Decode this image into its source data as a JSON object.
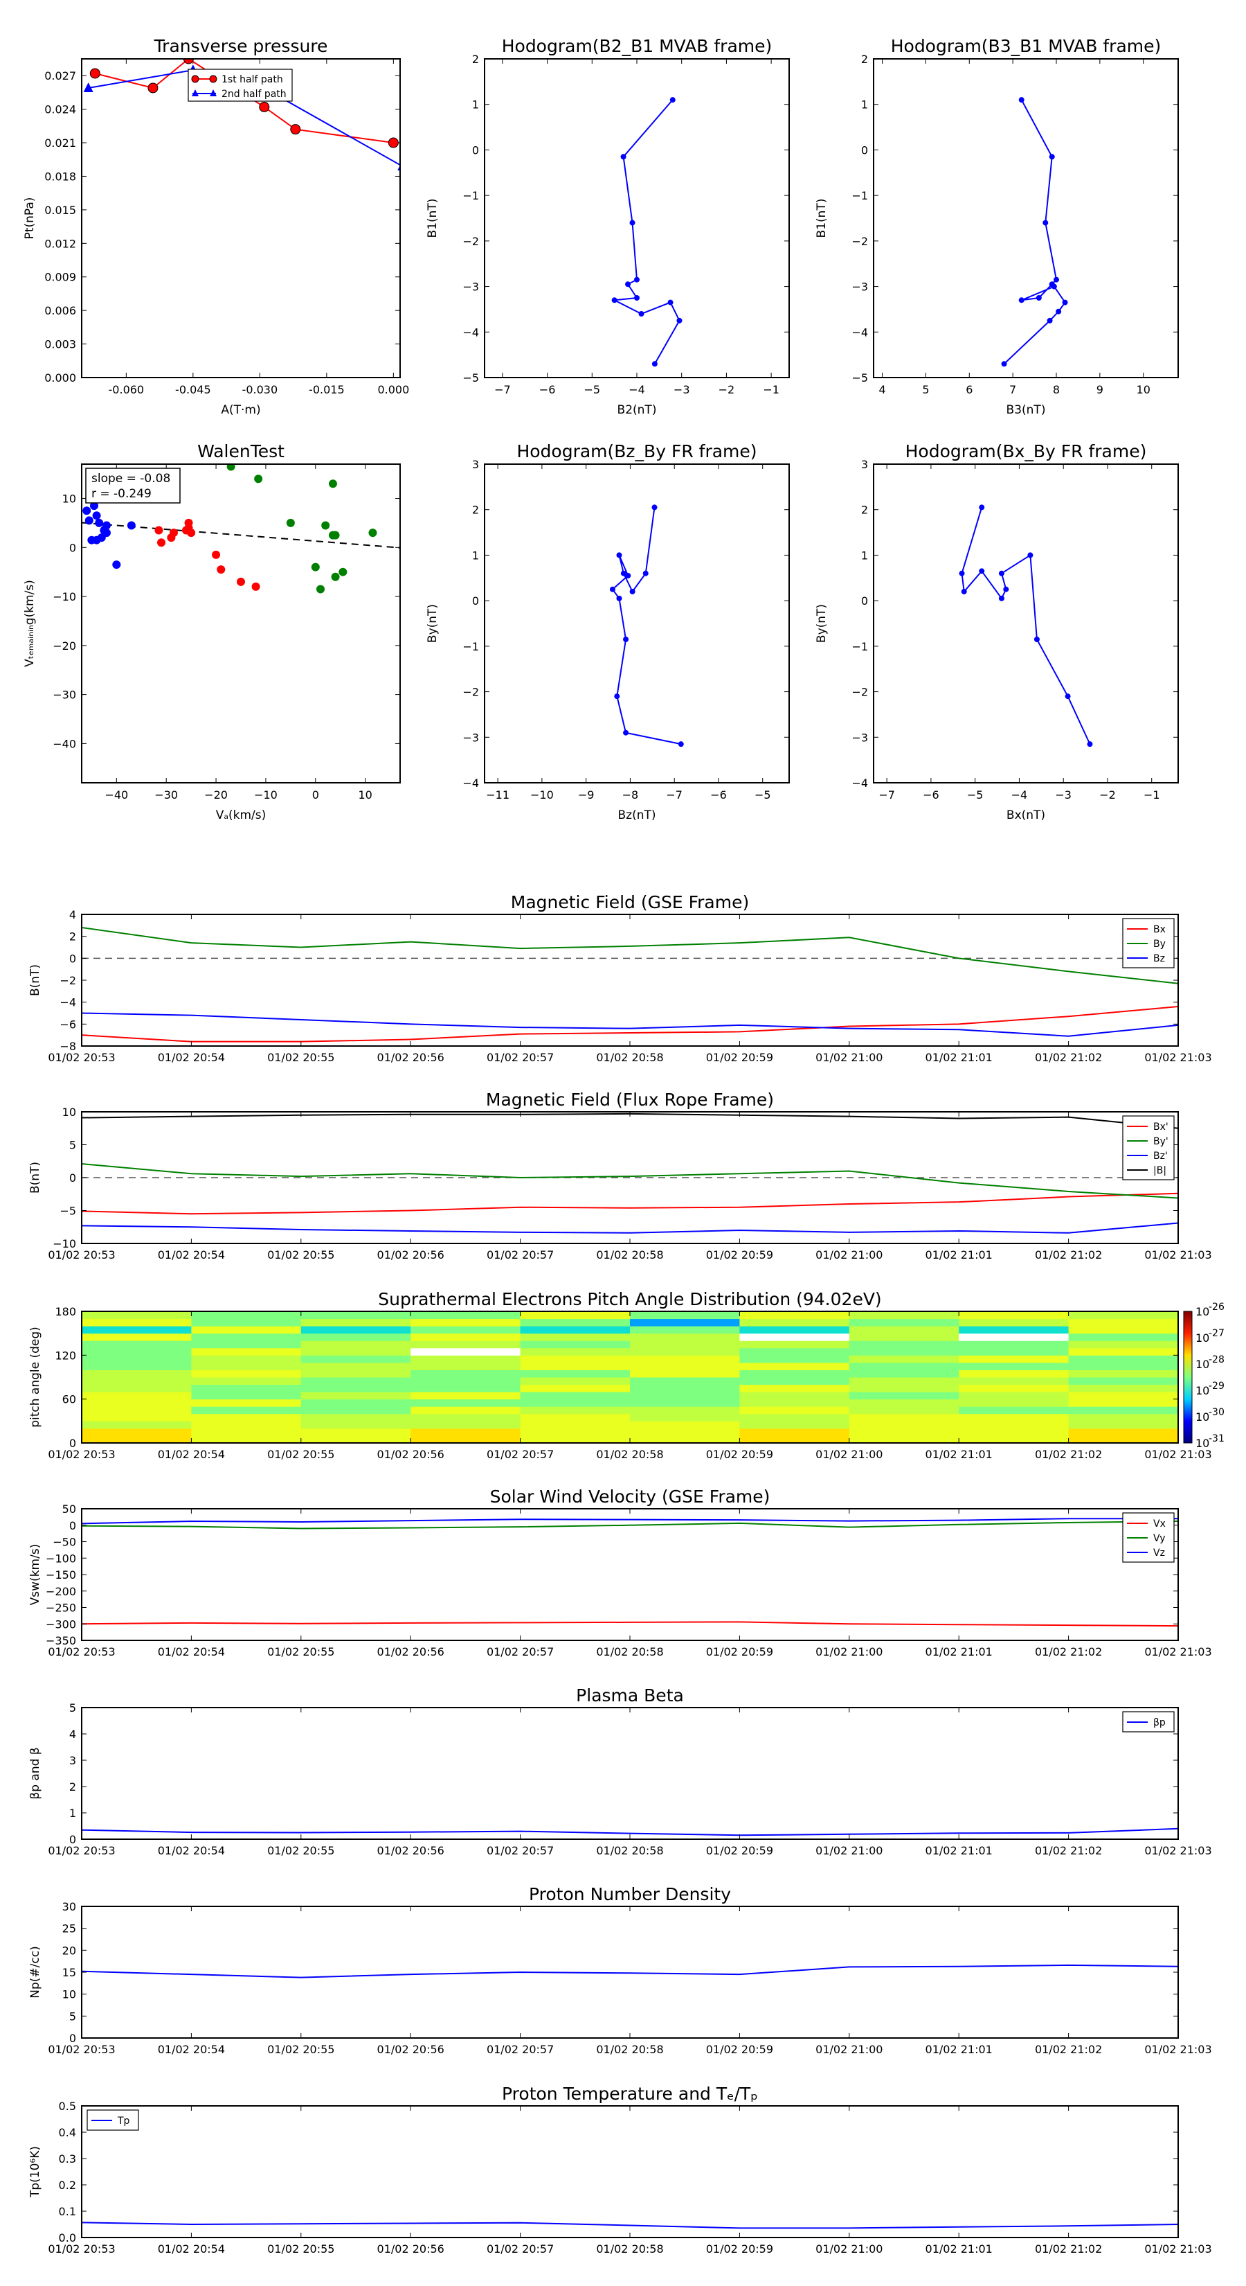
{
  "charts": [
    {
      "type": "line",
      "title": "Transverse pressure",
      "xlabel": "A(T·m)",
      "ylabel": "Pt(nPa)",
      "xlim": [
        -0.07,
        0.0015
      ],
      "ylim": [
        0,
        0.0285
      ],
      "xticks": [
        -0.06,
        -0.045,
        -0.03,
        -0.015,
        0.0
      ],
      "xtick_labels": [
        "-0.060",
        "-0.045",
        "-0.030",
        "-0.015",
        "0.000"
      ],
      "yticks": [
        0,
        0.003,
        0.006,
        0.009,
        0.012,
        0.015,
        0.018,
        0.021,
        0.024,
        0.027
      ],
      "ytick_labels": [
        "0.000",
        "0.003",
        "0.006",
        "0.009",
        "0.012",
        "0.015",
        "0.018",
        "0.021",
        "0.024",
        "0.027"
      ],
      "legend": "top-center",
      "series": [
        {
          "name": "1st half path",
          "color": "#ff0000",
          "marker": "circle",
          "x": [
            0.0,
            -0.022,
            -0.029,
            -0.046,
            -0.054,
            -0.067
          ],
          "y": [
            0.021,
            0.0222,
            0.0242,
            0.0285,
            0.0259,
            0.0272
          ]
        },
        {
          "name": "2nd half path",
          "color": "#0000ff",
          "marker": "triangle",
          "x": [
            -0.0685,
            -0.045,
            -0.034,
            0.002
          ],
          "y": [
            0.0259,
            0.0275,
            0.027,
            0.0189
          ]
        }
      ]
    },
    {
      "type": "line",
      "title": "Hodogram(B2_B1 MVAB frame)",
      "xlabel": "B2(nT)",
      "ylabel": "B1(nT)",
      "xlim": [
        -7.4,
        -0.6
      ],
      "ylim": [
        -5,
        2
      ],
      "xticks": [
        -7,
        -6,
        -5,
        -4,
        -3,
        -2,
        -1
      ],
      "xtick_labels": [
        "−7",
        "−6",
        "−5",
        "−4",
        "−3",
        "−2",
        "−1"
      ],
      "yticks": [
        -5,
        -4,
        -3,
        -2,
        -1,
        0,
        1,
        2
      ],
      "ytick_labels": [
        "−5",
        "−4",
        "−3",
        "−2",
        "−1",
        "0",
        "1",
        "2"
      ],
      "series": [
        {
          "name": "",
          "color": "#0000ff",
          "marker": "dot",
          "x": [
            -3.2,
            -4.3,
            -4.1,
            -4.0,
            -4.2,
            -4.0,
            -4.5,
            -3.9,
            -3.25,
            -3.05,
            -3.6
          ],
          "y": [
            1.1,
            -0.15,
            -1.6,
            -2.85,
            -2.95,
            -3.25,
            -3.3,
            -3.6,
            -3.35,
            -3.75,
            -4.7
          ]
        }
      ]
    },
    {
      "type": "line",
      "title": "Hodogram(B3_B1 MVAB frame)",
      "xlabel": "B3(nT)",
      "ylabel": "B1(nT)",
      "xlim": [
        3.8,
        10.8
      ],
      "ylim": [
        -5,
        2
      ],
      "xticks": [
        4,
        5,
        6,
        7,
        8,
        9,
        10
      ],
      "xtick_labels": [
        "4",
        "5",
        "6",
        "7",
        "8",
        "9",
        "10"
      ],
      "yticks": [
        -5,
        -4,
        -3,
        -2,
        -1,
        0,
        1,
        2
      ],
      "ytick_labels": [
        "−5",
        "−4",
        "−3",
        "−2",
        "−1",
        "0",
        "1",
        "2"
      ],
      "series": [
        {
          "name": "",
          "color": "#0000ff",
          "marker": "dot",
          "x": [
            7.2,
            7.9,
            7.75,
            8.0,
            7.9,
            7.6,
            7.2,
            7.95,
            8.2,
            8.05,
            7.85,
            6.8
          ],
          "y": [
            1.1,
            -0.15,
            -1.6,
            -2.85,
            -2.95,
            -3.25,
            -3.3,
            -3.0,
            -3.35,
            -3.55,
            -3.75,
            -4.7
          ]
        }
      ]
    },
    {
      "type": "scatter",
      "title": "WalenTest",
      "xlabel": "Vₐ(km/s)",
      "ylabel": "Vₜₑₘₐᵢₙᵢₙg(km/s)",
      "xlim": [
        -47,
        17
      ],
      "ylim": [
        -48,
        17
      ],
      "xticks": [
        -40,
        -30,
        -20,
        -10,
        0,
        10
      ],
      "xtick_labels": [
        "−40",
        "−30",
        "−20",
        "−10",
        "0",
        "10"
      ],
      "yticks": [
        -40,
        -30,
        -20,
        -10,
        0,
        10
      ],
      "ytick_labels": [
        "−40",
        "−30",
        "−20",
        "−10",
        "0",
        "10"
      ],
      "annotation": {
        "line1": "slope = -0.08",
        "line2": "r = -0.249"
      },
      "fit": {
        "slope": -0.08,
        "intercept": 1.3,
        "color": "#000000"
      },
      "series": [
        {
          "name": "",
          "color": "#0000ff",
          "x": [
            -46,
            -45.5,
            -45,
            -44.5,
            -44,
            -44,
            -43.5,
            -43,
            -42.5,
            -42,
            -42,
            -40,
            -37
          ],
          "y": [
            7.5,
            5.5,
            1.5,
            8.5,
            6.5,
            1.5,
            5.0,
            2.0,
            3.5,
            4.5,
            3.0,
            -3.5,
            4.5
          ]
        },
        {
          "name": "",
          "color": "#ff0000",
          "x": [
            -31.5,
            -31,
            -29,
            -28.5,
            -26,
            -25.5,
            -25.5,
            -25,
            -20,
            -19,
            -15,
            -12
          ],
          "y": [
            3.5,
            1.0,
            2.0,
            3.0,
            3.5,
            5.0,
            4.0,
            3.0,
            -1.5,
            -4.5,
            -7.0,
            -8.0
          ]
        },
        {
          "name": "",
          "color": "#008000",
          "x": [
            -17,
            -11.5,
            -5,
            0,
            1,
            2,
            3.5,
            3.5,
            4,
            4,
            5.5,
            11.5
          ],
          "y": [
            16.5,
            14,
            5,
            -4,
            -8.5,
            4.5,
            13,
            2.5,
            2.5,
            -6,
            -5,
            3
          ]
        }
      ]
    },
    {
      "type": "line",
      "title": "Hodogram(Bz_By FR frame)",
      "xlabel": "Bz(nT)",
      "ylabel": "By(nT)",
      "xlim": [
        -11.3,
        -4.4
      ],
      "ylim": [
        -4,
        3
      ],
      "xticks": [
        -11,
        -10,
        -9,
        -8,
        -7,
        -6,
        -5
      ],
      "xtick_labels": [
        "−11",
        "−10",
        "−9",
        "−8",
        "−7",
        "−6",
        "−5"
      ],
      "yticks": [
        -4,
        -3,
        -2,
        -1,
        0,
        1,
        2,
        3
      ],
      "ytick_labels": [
        "−4",
        "−3",
        "−2",
        "−1",
        "0",
        "1",
        "2",
        "3"
      ],
      "series": [
        {
          "name": "",
          "color": "#0000ff",
          "marker": "dot",
          "x": [
            -7.45,
            -7.65,
            -7.95,
            -8.15,
            -8.25,
            -8.05,
            -8.4,
            -8.25,
            -8.1,
            -8.3,
            -8.1,
            -6.85
          ],
          "y": [
            2.05,
            0.6,
            0.2,
            0.6,
            1.0,
            0.55,
            0.25,
            0.05,
            -0.85,
            -2.1,
            -2.9,
            -3.15
          ]
        }
      ]
    },
    {
      "type": "line",
      "title": "Hodogram(Bx_By FR frame)",
      "xlabel": "Bx(nT)",
      "ylabel": "By(nT)",
      "xlim": [
        -7.3,
        -0.4
      ],
      "ylim": [
        -4,
        3
      ],
      "xticks": [
        -7,
        -6,
        -5,
        -4,
        -3,
        -2,
        -1
      ],
      "xtick_labels": [
        "−7",
        "−6",
        "−5",
        "−4",
        "−3",
        "−2",
        "−1"
      ],
      "yticks": [
        -4,
        -3,
        -2,
        -1,
        0,
        1,
        2,
        3
      ],
      "ytick_labels": [
        "−4",
        "−3",
        "−2",
        "−1",
        "0",
        "1",
        "2",
        "3"
      ],
      "series": [
        {
          "name": "",
          "color": "#0000ff",
          "marker": "dot",
          "x": [
            -4.85,
            -5.3,
            -5.25,
            -4.85,
            -4.4,
            -4.3,
            -4.4,
            -3.75,
            -3.6,
            -2.9,
            -2.4
          ],
          "y": [
            2.05,
            0.6,
            0.2,
            0.65,
            0.05,
            0.25,
            0.6,
            1.0,
            -0.85,
            -2.1,
            -3.15
          ]
        }
      ]
    }
  ],
  "timeseries": {
    "time_labels": [
      "01/02 20:53",
      "01/02 20:54",
      "01/02 20:55",
      "01/02 20:56",
      "01/02 20:57",
      "01/02 20:58",
      "01/02 20:59",
      "01/02 21:00",
      "01/02 21:01",
      "01/02 21:02",
      "01/02 21:03"
    ],
    "panels": [
      {
        "type": "line",
        "title": "Magnetic Field (GSE Frame)",
        "ylabel": "B(nT)",
        "ylim": [
          -8,
          4
        ],
        "yticks": [
          -8,
          -6,
          -4,
          -2,
          0,
          2,
          4
        ],
        "ytick_labels": [
          "−8",
          "−6",
          "−4",
          "−2",
          "0",
          "2",
          "4"
        ],
        "zero_line": true,
        "legend": "top-right",
        "series": [
          {
            "name": "Bx",
            "color": "#ff0000",
            "values": [
              -7.0,
              -7.6,
              -7.6,
              -7.4,
              -6.9,
              -6.8,
              -6.7,
              -6.2,
              -6.0,
              -5.3,
              -4.4
            ]
          },
          {
            "name": "By",
            "color": "#008000",
            "values": [
              2.8,
              1.4,
              1.0,
              1.5,
              0.9,
              1.1,
              1.4,
              1.9,
              0.0,
              -1.2,
              -2.3
            ]
          },
          {
            "name": "Bz",
            "color": "#0000ff",
            "values": [
              -5.0,
              -5.2,
              -5.6,
              -6.0,
              -6.3,
              -6.4,
              -6.1,
              -6.4,
              -6.5,
              -7.1,
              -6.1
            ]
          }
        ]
      },
      {
        "type": "line",
        "title": "Magnetic Field (Flux Rope Frame)",
        "ylabel": "B(nT)",
        "ylim": [
          -10,
          10
        ],
        "yticks": [
          -10,
          -5,
          0,
          5,
          10
        ],
        "ytick_labels": [
          "−10",
          "−5",
          "0",
          "5",
          "10"
        ],
        "zero_line": true,
        "legend": "top-right",
        "series": [
          {
            "name": "Bx'",
            "color": "#ff0000",
            "values": [
              -5.1,
              -5.5,
              -5.3,
              -5.0,
              -4.5,
              -4.6,
              -4.5,
              -4.0,
              -3.7,
              -2.9,
              -2.4
            ]
          },
          {
            "name": "By'",
            "color": "#008000",
            "values": [
              2.1,
              0.6,
              0.2,
              0.6,
              0.0,
              0.2,
              0.6,
              1.0,
              -0.8,
              -2.1,
              -3.1
            ]
          },
          {
            "name": "Bz'",
            "color": "#0000ff",
            "values": [
              -7.3,
              -7.5,
              -7.9,
              -8.1,
              -8.3,
              -8.4,
              -8.0,
              -8.3,
              -8.1,
              -8.4,
              -6.9
            ]
          },
          {
            "name": "|B|",
            "color": "#000000",
            "values": [
              9.1,
              9.3,
              9.5,
              9.6,
              9.6,
              9.7,
              9.5,
              9.3,
              9.0,
              9.2,
              7.5
            ]
          }
        ]
      },
      {
        "type": "heatmap",
        "title": "Suprathermal Electrons Pitch Angle Distribution (94.02eV)",
        "ylabel": "pitch angle (deg)",
        "ylim": [
          0,
          180
        ],
        "yticks": [
          0,
          60,
          120,
          180
        ],
        "ytick_labels": [
          "0",
          "60",
          "120",
          "180"
        ],
        "colorbar": {
          "ticks": [
            -26,
            -27,
            -28,
            -29,
            -30,
            -31
          ],
          "tick_labels": [
            "10",
            "10",
            "10",
            "10",
            "10",
            "10"
          ],
          "exponents": [
            "-26",
            "-27",
            "-28",
            "-29",
            "-30",
            "-31"
          ]
        }
      },
      {
        "type": "line",
        "title": "Solar Wind Velocity (GSE Frame)",
        "ylabel": "Vsw(km/s)",
        "ylim": [
          -350,
          50
        ],
        "yticks": [
          -350,
          -300,
          -250,
          -200,
          -150,
          -100,
          -50,
          0,
          50
        ],
        "ytick_labels": [
          "−350",
          "−300",
          "−250",
          "−200",
          "−150",
          "−100",
          "−50",
          "0",
          "50"
        ],
        "legend": "top-right",
        "series": [
          {
            "name": "Vx",
            "color": "#ff0000",
            "values": [
              -300,
              -297,
              -299,
              -297,
              -296,
              -295,
              -294,
              -300,
              -302,
              -304,
              -306
            ]
          },
          {
            "name": "Vy",
            "color": "#008000",
            "values": [
              -2,
              -4,
              -10,
              -8,
              -5,
              0,
              6,
              -6,
              2,
              8,
              12
            ]
          },
          {
            "name": "Vz",
            "color": "#0000ff",
            "values": [
              5,
              12,
              10,
              14,
              18,
              17,
              16,
              13,
              15,
              20,
              20
            ]
          }
        ]
      },
      {
        "type": "line",
        "title": "Plasma Beta",
        "ylabel": "βp and β",
        "ylim": [
          0,
          5
        ],
        "yticks": [
          0,
          1,
          2,
          3,
          4,
          5
        ],
        "ytick_labels": [
          "0",
          "1",
          "2",
          "3",
          "4",
          "5"
        ],
        "legend": "top-right",
        "series": [
          {
            "name": "βp",
            "color": "#0000ff",
            "values": [
              0.35,
              0.26,
              0.25,
              0.27,
              0.3,
              0.22,
              0.15,
              0.19,
              0.23,
              0.24,
              0.4
            ]
          }
        ]
      },
      {
        "type": "line",
        "title": "Proton Number Density",
        "ylabel": "Np(#/cc)",
        "ylim": [
          0,
          30
        ],
        "yticks": [
          0,
          5,
          10,
          15,
          20,
          25,
          30
        ],
        "ytick_labels": [
          "0",
          "5",
          "10",
          "15",
          "20",
          "25",
          "30"
        ],
        "series": [
          {
            "name": "",
            "color": "#0000ff",
            "values": [
              15.2,
              14.5,
              13.8,
              14.5,
              15.0,
              14.8,
              14.5,
              16.2,
              16.3,
              16.6,
              16.3
            ]
          }
        ]
      },
      {
        "type": "line",
        "title": "Proton Temperature and Tₑ/Tₚ",
        "ylabel": "Tp(10⁶K)",
        "ylim": [
          0,
          0.5
        ],
        "yticks": [
          0,
          0.1,
          0.2,
          0.3,
          0.4,
          0.5
        ],
        "ytick_labels": [
          "0.0",
          "0.1",
          "0.2",
          "0.3",
          "0.4",
          "0.5"
        ],
        "legend": "top-left",
        "series": [
          {
            "name": "Tp",
            "color": "#0000ff",
            "values": [
              0.057,
              0.05,
              0.052,
              0.054,
              0.056,
              0.046,
              0.036,
              0.036,
              0.04,
              0.044,
              0.05
            ]
          }
        ]
      }
    ]
  }
}
